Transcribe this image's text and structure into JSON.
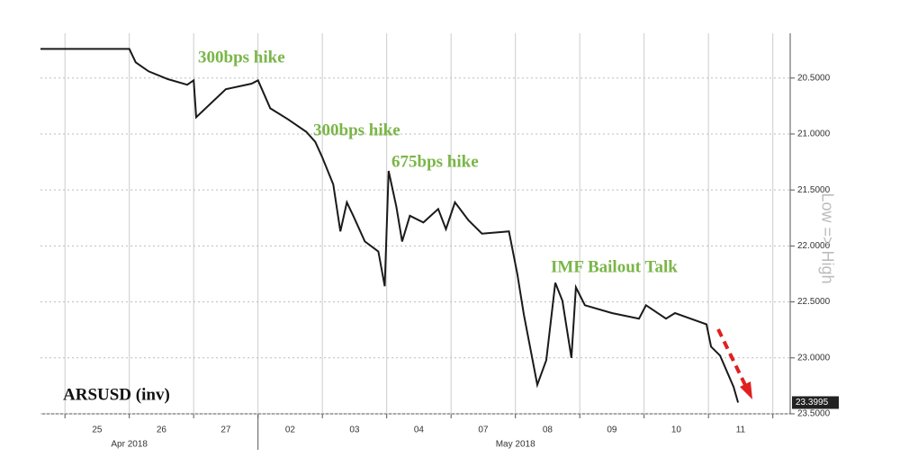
{
  "chart_data": {
    "type": "line",
    "title": "ARSUSD (inv)",
    "y_label": "Low => High",
    "annotations": [
      "300bps hike",
      "300bps hike",
      "675bps hike",
      "IMF Bailout Talk"
    ],
    "y_inverted": true,
    "ylim": [
      20.1,
      23.5
    ],
    "yticks": [
      {
        "value": 20.5,
        "label": "20.5000"
      },
      {
        "value": 21.0,
        "label": "21.0000"
      },
      {
        "value": 21.5,
        "label": "21.5000"
      },
      {
        "value": 22.0,
        "label": "22.0000"
      },
      {
        "value": 22.5,
        "label": "22.5000"
      },
      {
        "value": 23.0,
        "label": "23.0000"
      },
      {
        "value": 23.5,
        "label": "23.5000"
      }
    ],
    "xlim": [
      -0.38,
      11.27
    ],
    "xgrid": [
      0,
      1,
      2,
      3,
      4,
      5,
      6,
      7,
      8,
      9,
      10,
      11
    ],
    "xticks": [
      {
        "value": 0.5,
        "label": "25"
      },
      {
        "value": 1.5,
        "label": "26"
      },
      {
        "value": 2.5,
        "label": "27"
      },
      {
        "value": 3.5,
        "label": "02"
      },
      {
        "value": 4.5,
        "label": "03"
      },
      {
        "value": 5.5,
        "label": "04"
      },
      {
        "value": 6.5,
        "label": "07"
      },
      {
        "value": 7.5,
        "label": "08"
      },
      {
        "value": 8.5,
        "label": "09"
      },
      {
        "value": 9.5,
        "label": "10"
      },
      {
        "value": 10.5,
        "label": "11"
      }
    ],
    "months": [
      {
        "value": 1.0,
        "label": "Apr 2018"
      },
      {
        "value": 7.0,
        "label": "May 2018"
      }
    ],
    "grid": true,
    "series": [
      {
        "name": "ARSUSD (inv)",
        "color": "#1a1a1a",
        "x": [
          -0.38,
          1.0,
          1.1,
          1.3,
          1.6,
          1.9,
          2.0,
          2.04,
          2.5,
          2.9,
          3.0,
          3.19,
          3.47,
          3.75,
          3.89,
          4.0,
          4.17,
          4.28,
          4.38,
          4.48,
          4.66,
          4.87,
          4.97,
          5.03,
          5.15,
          5.24,
          5.36,
          5.57,
          5.8,
          5.92,
          6.06,
          6.27,
          6.48,
          6.9,
          7.03,
          7.13,
          7.34,
          7.48,
          7.62,
          7.73,
          7.87,
          7.94,
          8.08,
          8.5,
          8.92,
          9.03,
          9.34,
          9.48,
          9.97,
          10.04,
          10.18,
          10.39,
          10.46
        ],
        "values": [
          20.24,
          20.24,
          20.36,
          20.44,
          20.51,
          20.56,
          20.52,
          20.85,
          20.6,
          20.55,
          20.52,
          20.77,
          20.87,
          20.98,
          21.07,
          21.21,
          21.45,
          21.87,
          21.61,
          21.73,
          21.96,
          22.05,
          22.36,
          21.33,
          21.65,
          21.96,
          21.73,
          21.79,
          21.67,
          21.85,
          21.61,
          21.77,
          21.89,
          21.87,
          22.25,
          22.61,
          23.24,
          23.02,
          22.33,
          22.49,
          23.0,
          22.37,
          22.53,
          22.6,
          22.65,
          22.53,
          22.65,
          22.6,
          22.7,
          22.9,
          22.98,
          23.26,
          23.3995
        ]
      }
    ]
  }
}
